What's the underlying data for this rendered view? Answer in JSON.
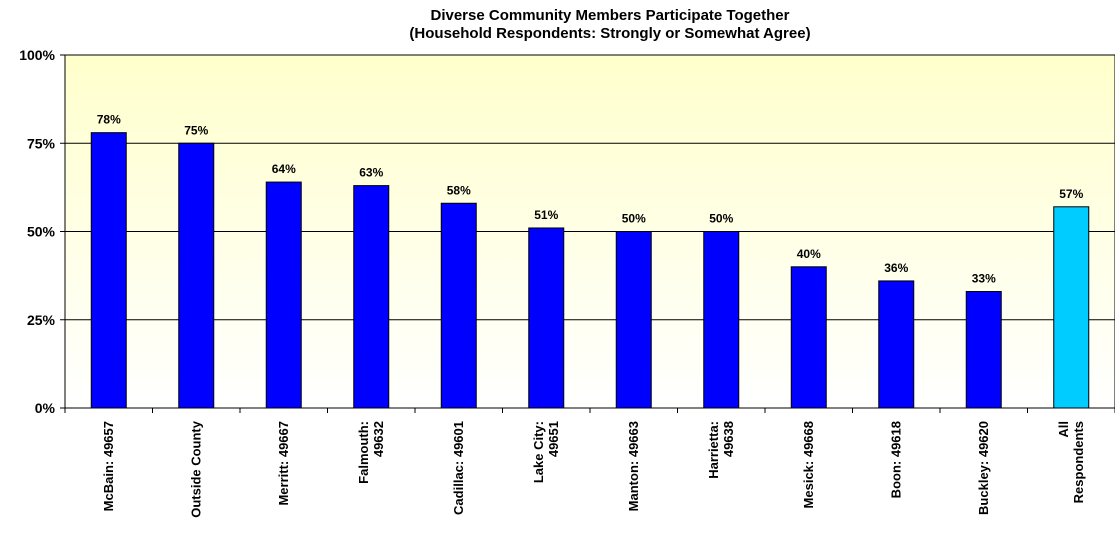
{
  "chart_data": {
    "type": "bar",
    "title": [
      "Diverse Community Members Participate Together",
      "(Household Respondents: Strongly or Somewhat Agree)"
    ],
    "categories": [
      [
        "McBain: 49657"
      ],
      [
        "Outside County"
      ],
      [
        "Merritt: 49667"
      ],
      [
        "Falmouth:",
        "49632"
      ],
      [
        "Cadillac: 49601"
      ],
      [
        "Lake City:",
        "49651"
      ],
      [
        "Manton: 49663"
      ],
      [
        "Harrietta:",
        "49638"
      ],
      [
        "Mesick: 49668"
      ],
      [
        "Boon: 49618"
      ],
      [
        "Buckley: 49620"
      ],
      [
        "All",
        "Respondents"
      ]
    ],
    "values": [
      78,
      75,
      64,
      63,
      58,
      51,
      50,
      50,
      40,
      36,
      33,
      57
    ],
    "data_labels": [
      "78%",
      "75%",
      "64%",
      "63%",
      "58%",
      "51%",
      "50%",
      "50%",
      "40%",
      "36%",
      "33%",
      "57%"
    ],
    "yticks": [
      0,
      25,
      50,
      75,
      100
    ],
    "ytick_labels": [
      "0%",
      "25%",
      "50%",
      "75%",
      "100%"
    ],
    "ylim": [
      0,
      100
    ],
    "xlabel": "",
    "ylabel": "",
    "grid": true,
    "colors": {
      "bar": "#0000ff",
      "highlight_bar": "#00ccff",
      "plot_bg_top": "#ffffcc",
      "plot_bg_bottom": "#ffffff"
    }
  }
}
